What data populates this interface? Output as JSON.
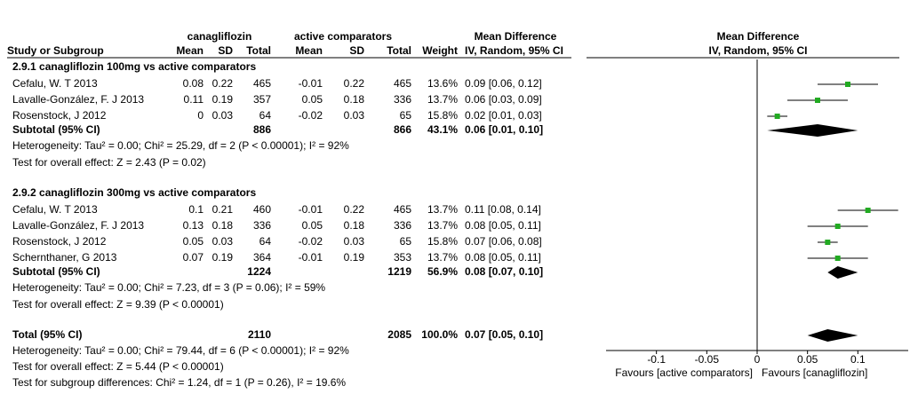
{
  "header": {
    "group1": "canagliflozin",
    "group2": "active comparators",
    "effect": "Mean Difference",
    "plot_title": "Mean Difference",
    "plot_subtitle": "IV, Random, 95% CI"
  },
  "columns": [
    "Study or Subgroup",
    "Mean",
    "SD",
    "Total",
    "Mean",
    "SD",
    "Total",
    "Weight",
    "IV, Random, 95% CI"
  ],
  "subgroups": [
    {
      "title": "2.9.1 canagliflozin 100mg vs active comparators",
      "studies": [
        {
          "name": "Cefalu, W. T 2013",
          "c_mean": "0.08",
          "c_sd": "0.22",
          "c_total": "465",
          "a_mean": "-0.01",
          "a_sd": "0.22",
          "a_total": "465",
          "weight": "13.6%",
          "ci": "0.09 [0.06, 0.12]",
          "md": 0.09,
          "lo": 0.06,
          "hi": 0.12
        },
        {
          "name": "Lavalle-González, F. J 2013",
          "c_mean": "0.11",
          "c_sd": "0.19",
          "c_total": "357",
          "a_mean": "0.05",
          "a_sd": "0.18",
          "a_total": "336",
          "weight": "13.7%",
          "ci": "0.06 [0.03, 0.09]",
          "md": 0.06,
          "lo": 0.03,
          "hi": 0.09
        },
        {
          "name": "Rosenstock, J 2012",
          "c_mean": "0",
          "c_sd": "0.03",
          "c_total": "64",
          "a_mean": "-0.02",
          "a_sd": "0.03",
          "a_total": "65",
          "weight": "15.8%",
          "ci": "0.02 [0.01, 0.03]",
          "md": 0.02,
          "lo": 0.01,
          "hi": 0.03
        }
      ],
      "subtotal": {
        "label": "Subtotal (95% CI)",
        "c_total": "886",
        "a_total": "866",
        "weight": "43.1%",
        "ci": "0.06 [0.01, 0.10]",
        "md": 0.06,
        "lo": 0.01,
        "hi": 0.1
      },
      "heterogeneity": "Heterogeneity: Tau² = 0.00; Chi² = 25.29, df = 2 (P < 0.00001); I² = 92%",
      "overall": "Test for overall effect: Z = 2.43 (P = 0.02)"
    },
    {
      "title": "2.9.2 canagliflozin 300mg vs active comparators",
      "studies": [
        {
          "name": "Cefalu, W. T 2013",
          "c_mean": "0.1",
          "c_sd": "0.21",
          "c_total": "460",
          "a_mean": "-0.01",
          "a_sd": "0.22",
          "a_total": "465",
          "weight": "13.7%",
          "ci": "0.11 [0.08, 0.14]",
          "md": 0.11,
          "lo": 0.08,
          "hi": 0.14
        },
        {
          "name": "Lavalle-González, F. J 2013",
          "c_mean": "0.13",
          "c_sd": "0.18",
          "c_total": "336",
          "a_mean": "0.05",
          "a_sd": "0.18",
          "a_total": "336",
          "weight": "13.7%",
          "ci": "0.08 [0.05, 0.11]",
          "md": 0.08,
          "lo": 0.05,
          "hi": 0.11
        },
        {
          "name": "Rosenstock, J 2012",
          "c_mean": "0.05",
          "c_sd": "0.03",
          "c_total": "64",
          "a_mean": "-0.02",
          "a_sd": "0.03",
          "a_total": "65",
          "weight": "15.8%",
          "ci": "0.07 [0.06, 0.08]",
          "md": 0.07,
          "lo": 0.06,
          "hi": 0.08
        },
        {
          "name": "Schernthaner, G 2013",
          "c_mean": "0.07",
          "c_sd": "0.19",
          "c_total": "364",
          "a_mean": "-0.01",
          "a_sd": "0.19",
          "a_total": "353",
          "weight": "13.7%",
          "ci": "0.08 [0.05, 0.11]",
          "md": 0.08,
          "lo": 0.05,
          "hi": 0.11
        }
      ],
      "subtotal": {
        "label": "Subtotal (95% CI)",
        "c_total": "1224",
        "a_total": "1219",
        "weight": "56.9%",
        "ci": "0.08 [0.07, 0.10]",
        "md": 0.08,
        "lo": 0.07,
        "hi": 0.1
      },
      "heterogeneity": "Heterogeneity: Tau² = 0.00; Chi² = 7.23, df = 3 (P = 0.06); I² = 59%",
      "overall": "Test for overall effect: Z = 9.39 (P < 0.00001)"
    }
  ],
  "total": {
    "label": "Total (95% CI)",
    "c_total": "2110",
    "a_total": "2085",
    "weight": "100.0%",
    "ci": "0.07 [0.05, 0.10]",
    "md": 0.07,
    "lo": 0.05,
    "hi": 0.1,
    "heterogeneity": "Heterogeneity: Tau² = 0.00; Chi² = 79.44, df = 6 (P < 0.00001); I² = 92%",
    "overall": "Test for overall effect: Z = 5.44 (P < 0.00001)",
    "subgroup_differences": "Test for subgroup differences: Chi² = 1.24, df = 1 (P = 0.26), I² = 19.6%"
  },
  "plot": {
    "xlim": [
      -0.15,
      0.15
    ],
    "xticks": [
      -0.1,
      -0.05,
      0,
      0.05,
      0.1
    ],
    "left_label": "Favours [active comparators]",
    "right_label": "Favours [canagliflozin]",
    "point_color": "#22aa22"
  }
}
